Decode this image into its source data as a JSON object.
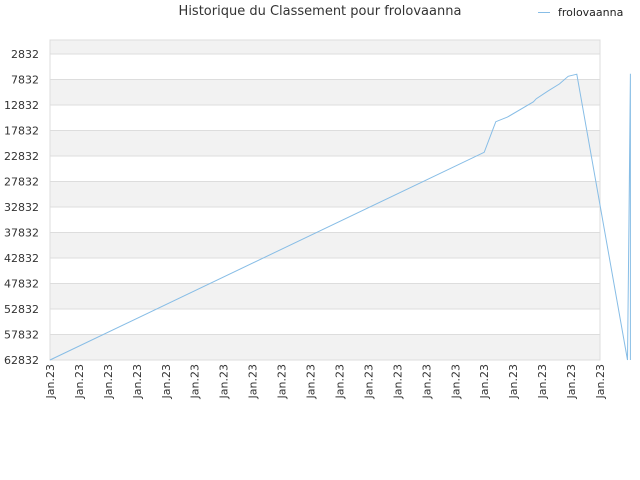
{
  "chart_data": {
    "type": "line",
    "title": "Historique du Classement pour frolovaanna",
    "xlabel": "",
    "ylabel": "",
    "y_inverted": true,
    "ylim": [
      62832,
      0
    ],
    "y_ticks": [
      "2832",
      "7832",
      "12832",
      "17832",
      "22832",
      "27832",
      "32832",
      "37832",
      "42832",
      "47832",
      "52832",
      "57832",
      "62832"
    ],
    "x_ticks": [
      "Jan.23",
      "Jan.23",
      "Jan.23",
      "Jan.23",
      "Jan.23",
      "Jan.23",
      "Jan.23",
      "Jan.23",
      "Jan.23",
      "Jan.23",
      "Jan.23",
      "Jan.23",
      "Jan.23",
      "Jan.23",
      "Jan.23",
      "Jan.23",
      "Jan.23",
      "Jan.23",
      "Jan.23",
      "Jan.23"
    ],
    "grid": true,
    "legend_position": "top-right",
    "series": [
      {
        "name": "frolovaanna",
        "color": "#87bde6",
        "points": [
          {
            "x": 0.0,
            "y": 62832
          },
          {
            "x": 15.0,
            "y": 22100
          },
          {
            "x": 15.4,
            "y": 16100
          },
          {
            "x": 15.8,
            "y": 15200
          },
          {
            "x": 16.7,
            "y": 12200
          },
          {
            "x": 16.8,
            "y": 11600
          },
          {
            "x": 17.2,
            "y": 10100
          },
          {
            "x": 17.6,
            "y": 8700
          },
          {
            "x": 17.9,
            "y": 7200
          },
          {
            "x": 18.2,
            "y": 6800
          },
          {
            "x": 19.95,
            "y": 62832
          },
          {
            "x": 20.0,
            "y": 37000
          },
          {
            "x": 20.05,
            "y": 6700
          },
          {
            "x": 20.05,
            "y": 62832
          }
        ]
      }
    ]
  },
  "colors": {
    "grid_band": "#f2f2f2",
    "grid_line": "#dddddd",
    "line": "#87bde6"
  }
}
